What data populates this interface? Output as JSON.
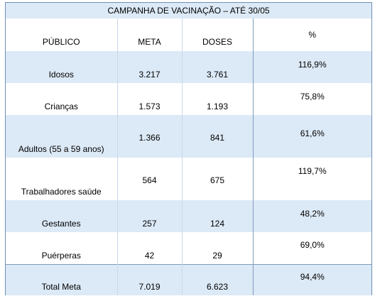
{
  "table": {
    "title": "CAMPANHA DE VACINAÇÃO – ATÉ 30/05",
    "headers": {
      "publico": "PÚBLICO",
      "meta": "META",
      "doses": "DOSES",
      "percent": "%"
    },
    "rows": [
      {
        "publico": "Idosos",
        "meta": "3.217",
        "doses": "3.761",
        "percent": "116,9%"
      },
      {
        "publico": "Crianças",
        "meta": "1.573",
        "doses": "1.193",
        "percent": "75,8%"
      },
      {
        "publico": "Adultos (55 a 59 anos)",
        "meta": "1.366",
        "doses": "841",
        "percent": "61,6%"
      },
      {
        "publico": "Trabalhadores saúde",
        "meta": "564",
        "doses": "675",
        "percent": "119,7%"
      },
      {
        "publico": "Gestantes",
        "meta": "257",
        "doses": "124",
        "percent": "48,2%"
      },
      {
        "publico": "Puérperas",
        "meta": "42",
        "doses": "29",
        "percent": "69,0%"
      },
      {
        "publico": "Total Meta",
        "meta": "7.019",
        "doses": "6.623",
        "percent": "94,4%"
      }
    ]
  },
  "colors": {
    "shade": "#dce9f6",
    "border": "#6f8fb3"
  }
}
